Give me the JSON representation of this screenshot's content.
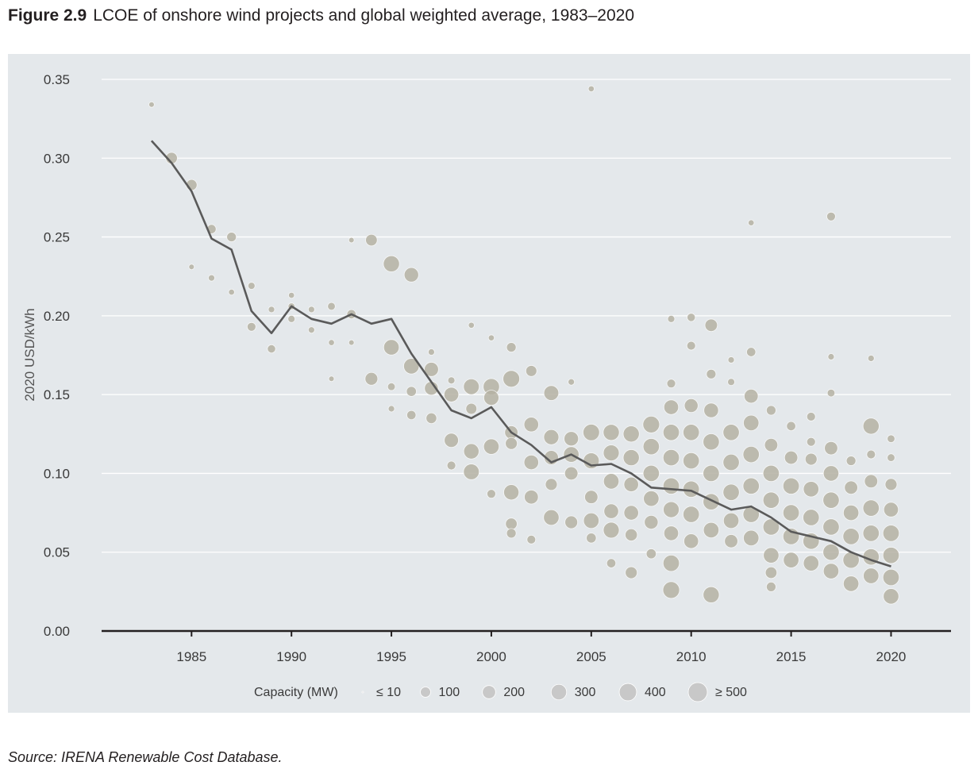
{
  "figure": {
    "number": "Figure 2.9",
    "title": "LCOE of onshore wind projects and global weighted average, 1983–2020",
    "source": "Source: IRENA Renewable Cost Database."
  },
  "chart_data": {
    "type": "scatter",
    "ylabel": "2020 USD/kWh",
    "xlabel": "",
    "xlim": [
      1980.5,
      2023
    ],
    "ylim": [
      0,
      0.35
    ],
    "x_ticks": [
      1985,
      1990,
      1995,
      2000,
      2005,
      2010,
      2015,
      2020
    ],
    "y_ticks": [
      "0.35",
      "0.30",
      "0.25",
      "0.20",
      "0.15",
      "0.10",
      "0.05",
      "0.00"
    ],
    "grid": true,
    "colors": {
      "bubble": "#b5b2a3",
      "bubble_edge": "#ffffff",
      "average_line": "#5a5a5a",
      "background": "#e4e8eb"
    },
    "legend": {
      "title": "Capacity (MW)",
      "position": "bottom",
      "entries": [
        {
          "label": "≤ 10",
          "capacity": 10
        },
        {
          "label": "100",
          "capacity": 100
        },
        {
          "label": "200",
          "capacity": 200
        },
        {
          "label": "300",
          "capacity": 300
        },
        {
          "label": "400",
          "capacity": 400
        },
        {
          "label": "≥ 500",
          "capacity": 500
        }
      ]
    },
    "weighted_average": {
      "x": [
        1983,
        1984,
        1985,
        1986,
        1987,
        1988,
        1989,
        1990,
        1991,
        1992,
        1993,
        1994,
        1995,
        1996,
        1997,
        1998,
        1999,
        2000,
        2001,
        2002,
        2003,
        2004,
        2005,
        2006,
        2007,
        2008,
        2009,
        2010,
        2011,
        2012,
        2013,
        2014,
        2015,
        2016,
        2017,
        2018,
        2019,
        2020
      ],
      "y": [
        0.311,
        0.297,
        0.279,
        0.249,
        0.242,
        0.203,
        0.189,
        0.206,
        0.198,
        0.195,
        0.201,
        0.195,
        0.198,
        0.176,
        0.158,
        0.14,
        0.135,
        0.142,
        0.126,
        0.118,
        0.107,
        0.112,
        0.105,
        0.106,
        0.1,
        0.091,
        0.09,
        0.089,
        0.083,
        0.077,
        0.079,
        0.072,
        0.063,
        0.06,
        0.057,
        0.05,
        0.045,
        0.041
      ]
    },
    "projects": [
      [
        1983,
        0.334,
        10
      ],
      [
        1984,
        0.3,
        140
      ],
      [
        1985,
        0.283,
        120
      ],
      [
        1985,
        0.231,
        10
      ],
      [
        1986,
        0.255,
        70
      ],
      [
        1986,
        0.224,
        20
      ],
      [
        1987,
        0.25,
        80
      ],
      [
        1987,
        0.215,
        15
      ],
      [
        1988,
        0.219,
        30
      ],
      [
        1988,
        0.193,
        60
      ],
      [
        1989,
        0.179,
        50
      ],
      [
        1989,
        0.204,
        20
      ],
      [
        1990,
        0.213,
        15
      ],
      [
        1990,
        0.206,
        25
      ],
      [
        1990,
        0.198,
        30
      ],
      [
        1991,
        0.204,
        20
      ],
      [
        1991,
        0.191,
        20
      ],
      [
        1992,
        0.206,
        40
      ],
      [
        1992,
        0.183,
        15
      ],
      [
        1992,
        0.16,
        10
      ],
      [
        1993,
        0.201,
        70
      ],
      [
        1993,
        0.183,
        10
      ],
      [
        1993,
        0.248,
        10
      ],
      [
        1994,
        0.248,
        140
      ],
      [
        1994,
        0.16,
        180
      ],
      [
        1995,
        0.233,
        330
      ],
      [
        1995,
        0.18,
        300
      ],
      [
        1995,
        0.155,
        40
      ],
      [
        1995,
        0.141,
        20
      ],
      [
        1996,
        0.226,
        250
      ],
      [
        1996,
        0.168,
        300
      ],
      [
        1996,
        0.152,
        90
      ],
      [
        1996,
        0.137,
        70
      ],
      [
        1997,
        0.166,
        240
      ],
      [
        1997,
        0.154,
        220
      ],
      [
        1997,
        0.135,
        110
      ],
      [
        1997,
        0.177,
        20
      ],
      [
        1998,
        0.15,
        260
      ],
      [
        1998,
        0.121,
        240
      ],
      [
        1998,
        0.159,
        30
      ],
      [
        1998,
        0.105,
        60
      ],
      [
        1999,
        0.155,
        310
      ],
      [
        1999,
        0.141,
        120
      ],
      [
        1999,
        0.114,
        290
      ],
      [
        1999,
        0.101,
        310
      ],
      [
        1999,
        0.194,
        15
      ],
      [
        2000,
        0.155,
        340
      ],
      [
        2000,
        0.148,
        280
      ],
      [
        2000,
        0.117,
        300
      ],
      [
        2000,
        0.087,
        60
      ],
      [
        2000,
        0.186,
        15
      ],
      [
        2001,
        0.18,
        80
      ],
      [
        2001,
        0.16,
        360
      ],
      [
        2001,
        0.126,
        200
      ],
      [
        2001,
        0.119,
        150
      ],
      [
        2001,
        0.088,
        290
      ],
      [
        2001,
        0.068,
        140
      ],
      [
        2001,
        0.062,
        80
      ],
      [
        2002,
        0.165,
        120
      ],
      [
        2002,
        0.131,
        260
      ],
      [
        2002,
        0.107,
        260
      ],
      [
        2002,
        0.085,
        230
      ],
      [
        2002,
        0.058,
        60
      ],
      [
        2003,
        0.151,
        270
      ],
      [
        2003,
        0.123,
        280
      ],
      [
        2003,
        0.11,
        240
      ],
      [
        2003,
        0.093,
        150
      ],
      [
        2003,
        0.072,
        300
      ],
      [
        2004,
        0.122,
        250
      ],
      [
        2004,
        0.112,
        300
      ],
      [
        2004,
        0.1,
        200
      ],
      [
        2004,
        0.069,
        180
      ],
      [
        2004,
        0.158,
        20
      ],
      [
        2005,
        0.126,
        350
      ],
      [
        2005,
        0.108,
        320
      ],
      [
        2005,
        0.085,
        200
      ],
      [
        2005,
        0.07,
        300
      ],
      [
        2005,
        0.059,
        90
      ],
      [
        2006,
        0.126,
        330
      ],
      [
        2006,
        0.113,
        320
      ],
      [
        2006,
        0.095,
        300
      ],
      [
        2006,
        0.076,
        260
      ],
      [
        2006,
        0.064,
        320
      ],
      [
        2006,
        0.043,
        70
      ],
      [
        2007,
        0.125,
        330
      ],
      [
        2007,
        0.11,
        330
      ],
      [
        2007,
        0.093,
        260
      ],
      [
        2007,
        0.075,
        260
      ],
      [
        2007,
        0.061,
        160
      ],
      [
        2007,
        0.037,
        150
      ],
      [
        2008,
        0.131,
        360
      ],
      [
        2008,
        0.117,
        340
      ],
      [
        2008,
        0.1,
        340
      ],
      [
        2008,
        0.084,
        300
      ],
      [
        2008,
        0.069,
        220
      ],
      [
        2008,
        0.049,
        90
      ],
      [
        2009,
        0.142,
        260
      ],
      [
        2009,
        0.126,
        340
      ],
      [
        2009,
        0.11,
        340
      ],
      [
        2009,
        0.092,
        340
      ],
      [
        2009,
        0.077,
        320
      ],
      [
        2009,
        0.062,
        260
      ],
      [
        2009,
        0.043,
        340
      ],
      [
        2009,
        0.026,
        360
      ],
      [
        2009,
        0.157,
        60
      ],
      [
        2009,
        0.198,
        30
      ],
      [
        2010,
        0.199,
        50
      ],
      [
        2010,
        0.181,
        60
      ],
      [
        2010,
        0.143,
        220
      ],
      [
        2010,
        0.126,
        340
      ],
      [
        2010,
        0.108,
        340
      ],
      [
        2010,
        0.09,
        340
      ],
      [
        2010,
        0.074,
        340
      ],
      [
        2010,
        0.057,
        260
      ],
      [
        2011,
        0.194,
        170
      ],
      [
        2011,
        0.163,
        80
      ],
      [
        2011,
        0.14,
        260
      ],
      [
        2011,
        0.12,
        340
      ],
      [
        2011,
        0.1,
        340
      ],
      [
        2011,
        0.082,
        340
      ],
      [
        2011,
        0.064,
        300
      ],
      [
        2011,
        0.023,
        330
      ],
      [
        2012,
        0.126,
        340
      ],
      [
        2012,
        0.107,
        340
      ],
      [
        2012,
        0.088,
        340
      ],
      [
        2012,
        0.07,
        300
      ],
      [
        2012,
        0.057,
        200
      ],
      [
        2012,
        0.158,
        30
      ],
      [
        2012,
        0.172,
        20
      ],
      [
        2013,
        0.259,
        15
      ],
      [
        2013,
        0.177,
        70
      ],
      [
        2013,
        0.149,
        230
      ],
      [
        2013,
        0.132,
        300
      ],
      [
        2013,
        0.112,
        340
      ],
      [
        2013,
        0.092,
        340
      ],
      [
        2013,
        0.074,
        340
      ],
      [
        2013,
        0.059,
        300
      ],
      [
        2014,
        0.14,
        80
      ],
      [
        2014,
        0.118,
        200
      ],
      [
        2014,
        0.1,
        340
      ],
      [
        2014,
        0.083,
        340
      ],
      [
        2014,
        0.066,
        340
      ],
      [
        2014,
        0.048,
        300
      ],
      [
        2014,
        0.037,
        140
      ],
      [
        2014,
        0.028,
        80
      ],
      [
        2015,
        0.13,
        70
      ],
      [
        2015,
        0.11,
        200
      ],
      [
        2015,
        0.092,
        340
      ],
      [
        2015,
        0.075,
        340
      ],
      [
        2015,
        0.06,
        340
      ],
      [
        2015,
        0.045,
        300
      ],
      [
        2016,
        0.136,
        60
      ],
      [
        2016,
        0.12,
        60
      ],
      [
        2016,
        0.109,
        150
      ],
      [
        2016,
        0.09,
        300
      ],
      [
        2016,
        0.072,
        340
      ],
      [
        2016,
        0.057,
        340
      ],
      [
        2016,
        0.043,
        300
      ],
      [
        2017,
        0.263,
        60
      ],
      [
        2017,
        0.174,
        20
      ],
      [
        2017,
        0.151,
        40
      ],
      [
        2017,
        0.116,
        200
      ],
      [
        2017,
        0.1,
        300
      ],
      [
        2017,
        0.083,
        340
      ],
      [
        2017,
        0.066,
        340
      ],
      [
        2017,
        0.05,
        340
      ],
      [
        2017,
        0.038,
        300
      ],
      [
        2018,
        0.108,
        80
      ],
      [
        2018,
        0.091,
        200
      ],
      [
        2018,
        0.075,
        300
      ],
      [
        2018,
        0.06,
        340
      ],
      [
        2018,
        0.045,
        340
      ],
      [
        2018,
        0.03,
        300
      ],
      [
        2019,
        0.173,
        20
      ],
      [
        2019,
        0.13,
        330
      ],
      [
        2019,
        0.112,
        60
      ],
      [
        2019,
        0.095,
        200
      ],
      [
        2019,
        0.078,
        340
      ],
      [
        2019,
        0.062,
        340
      ],
      [
        2019,
        0.047,
        340
      ],
      [
        2019,
        0.035,
        300
      ],
      [
        2020,
        0.122,
        40
      ],
      [
        2020,
        0.11,
        40
      ],
      [
        2020,
        0.093,
        150
      ],
      [
        2020,
        0.077,
        260
      ],
      [
        2020,
        0.062,
        340
      ],
      [
        2020,
        0.048,
        340
      ],
      [
        2020,
        0.034,
        340
      ],
      [
        2020,
        0.022,
        300
      ],
      [
        2005,
        0.344,
        15
      ]
    ]
  }
}
